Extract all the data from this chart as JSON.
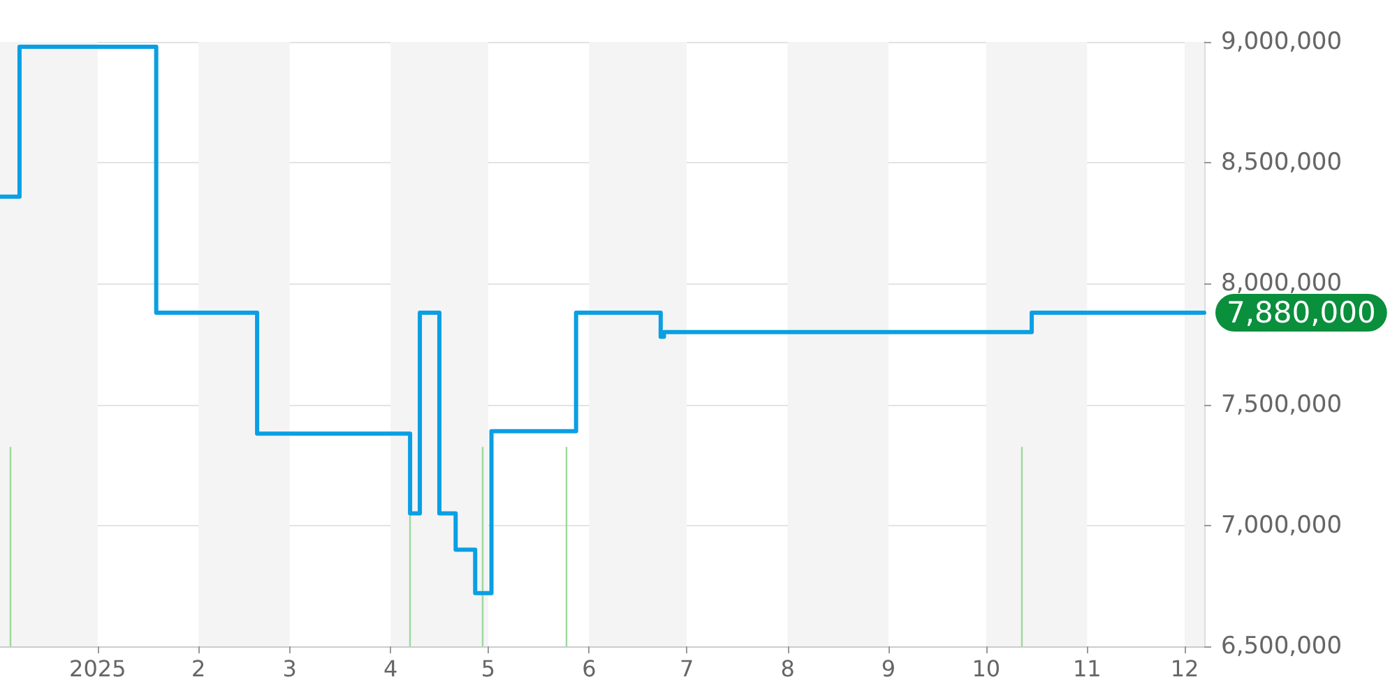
{
  "chart_data": {
    "type": "step",
    "x": [
      "2024-12-02",
      "2024-12-07",
      "2024-12-08",
      "2025-01-18",
      "2025-01-19",
      "2025-02-18",
      "2025-02-19",
      "2025-04-06",
      "2025-04-07",
      "2025-04-09",
      "2025-04-10",
      "2025-04-15",
      "2025-04-16",
      "2025-04-20",
      "2025-04-21",
      "2025-04-26",
      "2025-04-27",
      "2025-05-01",
      "2025-05-02",
      "2025-05-27",
      "2025-05-28",
      "2025-06-22",
      "2025-06-23",
      "2025-06-24",
      "2025-10-14",
      "2025-10-15",
      "2025-12-07"
    ],
    "series": [
      {
        "color": "#0a9fe3",
        "values": [
          8360000,
          8360000,
          8980000,
          8980000,
          7880000,
          7880000,
          7380000,
          7380000,
          7050000,
          7050000,
          7880000,
          7880000,
          7050000,
          7050000,
          6900000,
          6900000,
          6720000,
          6720000,
          7390000,
          7390000,
          7880000,
          7880000,
          7780000,
          7800000,
          7800000,
          7880000,
          7880000
        ]
      }
    ],
    "xlim": [
      "2024-12-02",
      "2025-12-07"
    ],
    "xticks": [
      {
        "value": "2025-01-01",
        "label": "2025"
      },
      {
        "value": "2025-02-01",
        "label": "2"
      },
      {
        "value": "2025-03-01",
        "label": "3"
      },
      {
        "value": "2025-04-01",
        "label": "4"
      },
      {
        "value": "2025-05-01",
        "label": "5"
      },
      {
        "value": "2025-06-01",
        "label": "6"
      },
      {
        "value": "2025-07-01",
        "label": "7"
      },
      {
        "value": "2025-08-01",
        "label": "8"
      },
      {
        "value": "2025-09-01",
        "label": "9"
      },
      {
        "value": "2025-10-01",
        "label": "10"
      },
      {
        "value": "2025-11-01",
        "label": "11"
      },
      {
        "value": "2025-12-01",
        "label": "12"
      }
    ],
    "ylim": [
      6500000,
      9000000
    ],
    "yticks": [
      {
        "value": 6500000,
        "label": "6,500,000"
      },
      {
        "value": 7000000,
        "label": "7,000,000"
      },
      {
        "value": 7500000,
        "label": "7,500,000"
      },
      {
        "value": 8000000,
        "label": "8,000,000"
      },
      {
        "value": 8500000,
        "label": "8,500,000"
      },
      {
        "value": 9000000,
        "label": "9,000,000"
      }
    ],
    "grid": "y",
    "marker": "none",
    "bands": [
      {
        "axis": "x",
        "from": "2024-12-02",
        "to": "2025-01-01",
        "color": "#f4f4f4"
      },
      {
        "axis": "x",
        "from": "2025-02-01",
        "to": "2025-03-01",
        "color": "#f4f4f4"
      },
      {
        "axis": "x",
        "from": "2025-04-01",
        "to": "2025-05-01",
        "color": "#f4f4f4"
      },
      {
        "axis": "x",
        "from": "2025-06-01",
        "to": "2025-07-01",
        "color": "#f4f4f4"
      },
      {
        "axis": "x",
        "from": "2025-08-01",
        "to": "2025-09-01",
        "color": "#f4f4f4"
      },
      {
        "axis": "x",
        "from": "2025-10-01",
        "to": "2025-11-01",
        "color": "#f4f4f4"
      },
      {
        "axis": "x",
        "from": "2025-12-01",
        "to": "2025-12-07",
        "color": "#f4f4f4"
      }
    ],
    "ref_lines": [
      {
        "axis": "x",
        "value": "2024-12-05",
        "color": "#9dd89d"
      },
      {
        "axis": "x",
        "value": "2025-04-07",
        "color": "#9dd89d"
      },
      {
        "axis": "x",
        "value": "2025-04-29",
        "color": "#9dd89d"
      },
      {
        "axis": "x",
        "value": "2025-05-25",
        "color": "#9dd89d"
      },
      {
        "axis": "x",
        "value": "2025-10-12",
        "color": "#9dd89d"
      }
    ],
    "annotations": [
      {
        "text": "7,880,000",
        "x": "2025-12-07",
        "y": 7880000
      }
    ]
  }
}
